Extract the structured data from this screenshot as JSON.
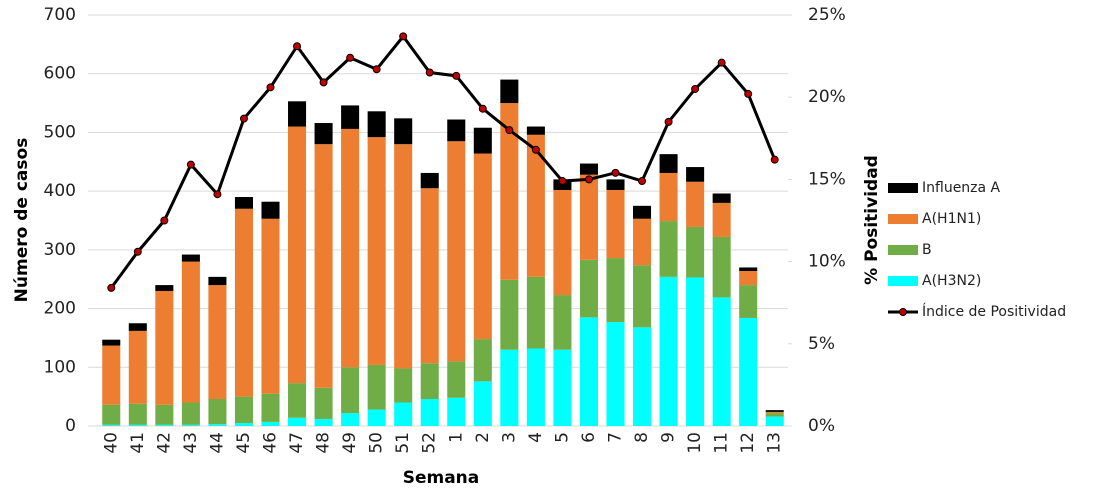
{
  "chart_data": {
    "type": "bar",
    "stacked": true,
    "x_label": "Semana",
    "y_label": "Número de casos",
    "y2_label": "% Positividad",
    "categories": [
      "40",
      "41",
      "42",
      "43",
      "44",
      "45",
      "46",
      "47",
      "48",
      "49",
      "50",
      "51",
      "52",
      "1",
      "2",
      "3",
      "4",
      "5",
      "6",
      "7",
      "8",
      "9",
      "10",
      "11",
      "12",
      "13"
    ],
    "series": [
      {
        "name": "A(H3N2)",
        "color": "#00ffff",
        "values": [
          2,
          2,
          2,
          2,
          3,
          5,
          7,
          14,
          12,
          22,
          28,
          40,
          46,
          48,
          76,
          130,
          132,
          130,
          185,
          177,
          168,
          254,
          253,
          219,
          184,
          16
        ]
      },
      {
        "name": "B",
        "color": "#70ad47",
        "values": [
          34,
          36,
          34,
          38,
          43,
          45,
          48,
          59,
          53,
          78,
          76,
          58,
          61,
          62,
          72,
          119,
          122,
          93,
          98,
          109,
          106,
          95,
          86,
          103,
          56,
          6
        ]
      },
      {
        "name": "A(H1N1)",
        "color": "#ed7d31",
        "values": [
          101,
          124,
          194,
          240,
          194,
          320,
          298,
          437,
          415,
          406,
          388,
          382,
          298,
          375,
          316,
          301,
          242,
          179,
          145,
          116,
          79,
          82,
          77,
          58,
          24,
          2
        ]
      },
      {
        "name": "Influenza A",
        "color": "#000000",
        "values": [
          10,
          13,
          10,
          12,
          14,
          20,
          29,
          43,
          36,
          40,
          44,
          44,
          26,
          37,
          44,
          40,
          14,
          18,
          19,
          18,
          22,
          32,
          25,
          16,
          6,
          3
        ]
      },
      {
        "name": "Índice de Positividad",
        "type": "line",
        "axis": "y2",
        "color": "#000000",
        "marker_color": "#c00000",
        "values": [
          8.4,
          10.6,
          12.5,
          15.9,
          14.1,
          18.7,
          20.6,
          23.1,
          20.9,
          22.4,
          21.7,
          23.7,
          21.5,
          21.3,
          19.3,
          18.0,
          16.8,
          14.9,
          15.0,
          15.4,
          14.9,
          18.5,
          20.5,
          22.1,
          20.2,
          16.2
        ]
      }
    ],
    "ylim": [
      0,
      700
    ],
    "yticks": [
      0,
      100,
      200,
      300,
      400,
      500,
      600,
      700
    ],
    "y2lim": [
      0,
      25
    ],
    "y2ticks": [
      {
        "value": 0,
        "label": "0%"
      },
      {
        "value": 5,
        "label": "5%"
      },
      {
        "value": 10,
        "label": "10%"
      },
      {
        "value": 15,
        "label": "15%"
      },
      {
        "value": 20,
        "label": "20%"
      },
      {
        "value": 25,
        "label": "25%"
      }
    ],
    "grid": true,
    "legend": "right"
  }
}
